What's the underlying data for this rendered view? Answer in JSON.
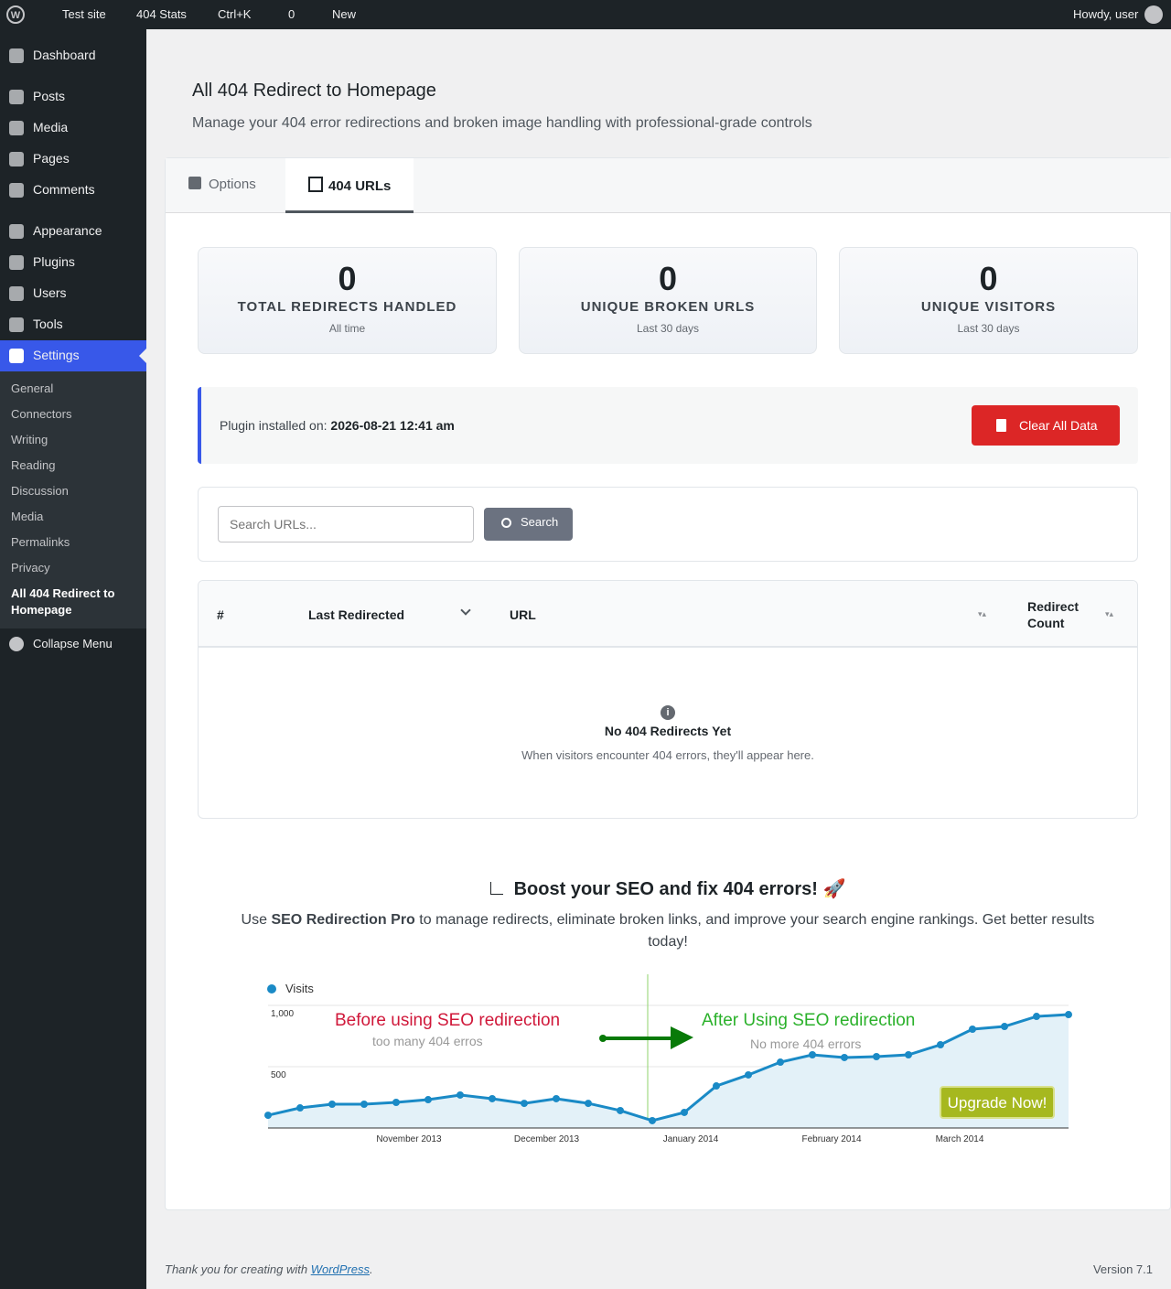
{
  "admin_bar": {
    "site": "Test site",
    "stats": "404 Stats",
    "search": "Ctrl+K",
    "comments": "0",
    "new": "New",
    "howdy": "Howdy, user"
  },
  "menu": {
    "items": [
      "Dashboard",
      "Posts",
      "Media",
      "Pages",
      "Comments",
      "Appearance",
      "Plugins",
      "Users",
      "Tools",
      "Settings"
    ],
    "submenu": [
      "General",
      "Connectors",
      "Writing",
      "Reading",
      "Discussion",
      "Media",
      "Permalinks",
      "Privacy",
      "All 404 Redirect to Homepage"
    ],
    "collapse": "Collapse Menu"
  },
  "header": {
    "title": "All 404 Redirect to Homepage",
    "subtitle": "Manage your 404 error redirections and broken image handling with professional-grade controls"
  },
  "tabs": [
    "Options",
    "404 URLs"
  ],
  "stats": [
    {
      "value": 0,
      "label": "TOTAL REDIRECTS HANDLED",
      "period": "All time"
    },
    {
      "value": 0,
      "label": "UNIQUE BROKEN URLS",
      "period": "Last 30 days"
    },
    {
      "value": 0,
      "label": "UNIQUE VISITORS",
      "period": "Last 30 days"
    }
  ],
  "install": {
    "label": "Plugin installed on:",
    "date": "2026-08-21 12:41 am",
    "button": "Clear All Data"
  },
  "search": {
    "placeholder": "Search URLs...",
    "button": "Search"
  },
  "table": {
    "columns": [
      "#",
      "Last Redirected",
      "URL",
      "Redirect Count"
    ],
    "empty_title": "No 404 Redirects Yet",
    "empty_text": "When visitors encounter 404 errors, they'll appear here."
  },
  "promo": {
    "title": "Boost your SEO and fix 404 errors! 🚀",
    "text_before": "Use",
    "brand": "SEO Redirection Pro",
    "text_after": "to manage redirects, eliminate broken links, and improve your search engine rankings. Get better results today!"
  },
  "chart_data": {
    "type": "line",
    "x": [
      0,
      1,
      2,
      3,
      4,
      5,
      6,
      7,
      8,
      9,
      10,
      11,
      12,
      13,
      14,
      15,
      16,
      17,
      18,
      19,
      20,
      21,
      22,
      23,
      24,
      25
    ],
    "series": [
      {
        "name": "Visits",
        "color": "#1a8ac6",
        "values": [
          104,
          164,
          194,
          194,
          209,
          231,
          269,
          239,
          201,
          239,
          201,
          142,
          60,
          127,
          343,
          433,
          537,
          597,
          575,
          582,
          597,
          679,
          806,
          828,
          910,
          925
        ]
      }
    ],
    "xlim": [
      0,
      25
    ],
    "xticks": [
      {
        "value": 4.4,
        "label": "November 2013"
      },
      {
        "value": 8.7,
        "label": "December 2013"
      },
      {
        "value": 13.2,
        "label": "January 2014"
      },
      {
        "value": 17.6,
        "label": "February 2014"
      },
      {
        "value": 21.6,
        "label": "March 2014"
      }
    ],
    "ylim": [
      0,
      1000
    ],
    "yticks": [
      500,
      {
        "value": 1000,
        "label": "1,000"
      }
    ],
    "grid": true,
    "annotations": {
      "before": "Before using SEO redirection",
      "before_sub": "too many 404 erros",
      "after": "After Using SEO redirection",
      "after_sub": "No more 404 errors",
      "button": "Upgrade Now!"
    }
  },
  "footer": {
    "thanks": "Thank you for creating with",
    "link": "WordPress",
    "period": ".",
    "version": "Version 7.1"
  }
}
